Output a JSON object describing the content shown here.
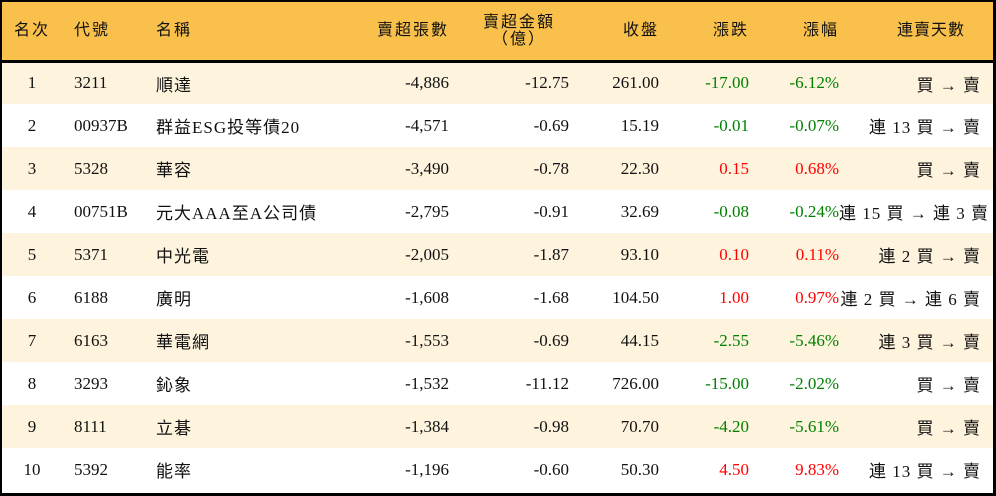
{
  "table": {
    "headers": {
      "rank": "名次",
      "code": "代號",
      "name": "名稱",
      "net_sell_volume": "賣超張數",
      "net_sell_amount_line1": "賣超金額",
      "net_sell_amount_line2": "（億）",
      "close": "收盤",
      "change": "漲跌",
      "change_pct": "漲幅",
      "consecutive_days": "連賣天數"
    },
    "colors": {
      "header_bg": "#F9C04C",
      "row_odd_bg": "#FEF3DD",
      "row_even_bg": "#FFFFFF",
      "down": "#008000",
      "up": "#FF0000"
    },
    "rows": [
      {
        "rank": "1",
        "code": "3211",
        "name": "順達",
        "volume": "-4,886",
        "amount": "-12.75",
        "close": "261.00",
        "change": "-17.00",
        "pct": "-6.12%",
        "dir": "down",
        "days": "買 → 賣"
      },
      {
        "rank": "2",
        "code": "00937B",
        "name": "群益ESG投等債20",
        "volume": "-4,571",
        "amount": "-0.69",
        "close": "15.19",
        "change": "-0.01",
        "pct": "-0.07%",
        "dir": "down",
        "days": "連 13 買 → 賣"
      },
      {
        "rank": "3",
        "code": "5328",
        "name": "華容",
        "volume": "-3,490",
        "amount": "-0.78",
        "close": "22.30",
        "change": "0.15",
        "pct": "0.68%",
        "dir": "up",
        "days": "買 → 賣"
      },
      {
        "rank": "4",
        "code": "00751B",
        "name": "元大AAA至A公司債",
        "volume": "-2,795",
        "amount": "-0.91",
        "close": "32.69",
        "change": "-0.08",
        "pct": "-0.24%",
        "dir": "down",
        "days": "連 15 買 → 連 3 賣"
      },
      {
        "rank": "5",
        "code": "5371",
        "name": "中光電",
        "volume": "-2,005",
        "amount": "-1.87",
        "close": "93.10",
        "change": "0.10",
        "pct": "0.11%",
        "dir": "up",
        "days": "連 2 買 → 賣"
      },
      {
        "rank": "6",
        "code": "6188",
        "name": "廣明",
        "volume": "-1,608",
        "amount": "-1.68",
        "close": "104.50",
        "change": "1.00",
        "pct": "0.97%",
        "dir": "up",
        "days": "連 2 買 → 連 6 賣"
      },
      {
        "rank": "7",
        "code": "6163",
        "name": "華電網",
        "volume": "-1,553",
        "amount": "-0.69",
        "close": "44.15",
        "change": "-2.55",
        "pct": "-5.46%",
        "dir": "down",
        "days": "連 3 買 → 賣"
      },
      {
        "rank": "8",
        "code": "3293",
        "name": "鈊象",
        "volume": "-1,532",
        "amount": "-11.12",
        "close": "726.00",
        "change": "-15.00",
        "pct": "-2.02%",
        "dir": "down",
        "days": "買 → 賣"
      },
      {
        "rank": "9",
        "code": "8111",
        "name": "立碁",
        "volume": "-1,384",
        "amount": "-0.98",
        "close": "70.70",
        "change": "-4.20",
        "pct": "-5.61%",
        "dir": "down",
        "days": "買 → 賣"
      },
      {
        "rank": "10",
        "code": "5392",
        "name": "能率",
        "volume": "-1,196",
        "amount": "-0.60",
        "close": "50.30",
        "change": "4.50",
        "pct": "9.83%",
        "dir": "up",
        "days": "連 13 買 → 賣"
      }
    ]
  }
}
